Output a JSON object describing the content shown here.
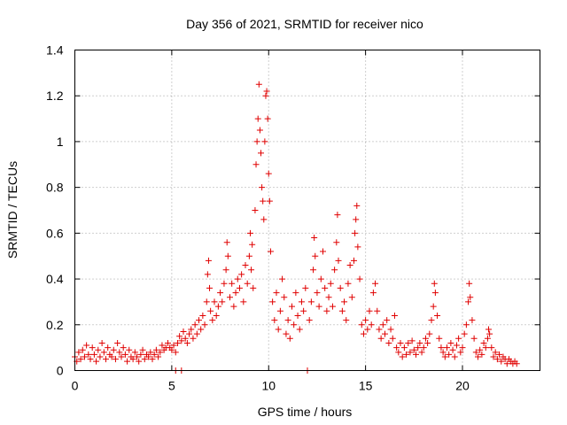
{
  "chart_data": {
    "type": "scatter",
    "title": "Day 356 of 2021, SRMTID for receiver nico",
    "xlabel": "GPS time / hours",
    "ylabel": "SRMTID / TECUs",
    "xlim": [
      0,
      24
    ],
    "ylim": [
      0,
      1.4
    ],
    "xticks": [
      0,
      5,
      10,
      15,
      20
    ],
    "xtick_labels": [
      "0",
      "5",
      "10",
      "15",
      "20"
    ],
    "yticks": [
      0,
      0.2,
      0.4,
      0.6,
      0.8,
      1.0,
      1.2,
      1.4
    ],
    "ytick_labels": [
      "0",
      "0.2",
      "0.4",
      "0.6",
      "0.8",
      "1",
      "1.2",
      "1.4"
    ],
    "grid": true,
    "marker": "+",
    "marker_color": "#e00000",
    "series": [
      {
        "name": "SRMTID",
        "points": [
          [
            0.0,
            0.06
          ],
          [
            0.1,
            0.04
          ],
          [
            0.2,
            0.08
          ],
          [
            0.3,
            0.05
          ],
          [
            0.4,
            0.09
          ],
          [
            0.5,
            0.06
          ],
          [
            0.6,
            0.11
          ],
          [
            0.7,
            0.07
          ],
          [
            0.8,
            0.05
          ],
          [
            0.9,
            0.1
          ],
          [
            1.0,
            0.07
          ],
          [
            1.1,
            0.04
          ],
          [
            1.2,
            0.09
          ],
          [
            1.3,
            0.06
          ],
          [
            1.4,
            0.12
          ],
          [
            1.5,
            0.08
          ],
          [
            1.6,
            0.05
          ],
          [
            1.7,
            0.1
          ],
          [
            1.8,
            0.07
          ],
          [
            1.9,
            0.06
          ],
          [
            2.0,
            0.09
          ],
          [
            2.1,
            0.05
          ],
          [
            2.2,
            0.12
          ],
          [
            2.3,
            0.08
          ],
          [
            2.4,
            0.06
          ],
          [
            2.5,
            0.1
          ],
          [
            2.6,
            0.07
          ],
          [
            2.7,
            0.04
          ],
          [
            2.8,
            0.09
          ],
          [
            2.9,
            0.06
          ],
          [
            3.0,
            0.05
          ],
          [
            3.1,
            0.08
          ],
          [
            3.2,
            0.06
          ],
          [
            3.3,
            0.04
          ],
          [
            3.4,
            0.07
          ],
          [
            3.5,
            0.09
          ],
          [
            3.6,
            0.05
          ],
          [
            3.7,
            0.07
          ],
          [
            3.8,
            0.06
          ],
          [
            3.9,
            0.08
          ],
          [
            4.0,
            0.05
          ],
          [
            4.1,
            0.07
          ],
          [
            4.2,
            0.09
          ],
          [
            4.3,
            0.06
          ],
          [
            4.4,
            0.08
          ],
          [
            4.5,
            0.11
          ],
          [
            4.6,
            0.09
          ],
          [
            4.7,
            0.1
          ],
          [
            4.8,
            0.12
          ],
          [
            4.9,
            0.1
          ],
          [
            5.0,
            0.09
          ],
          [
            5.1,
            0.11
          ],
          [
            5.2,
            0.08
          ],
          [
            5.3,
            0.12
          ],
          [
            5.4,
            0.15
          ],
          [
            5.5,
            0.13
          ],
          [
            5.6,
            0.17
          ],
          [
            5.7,
            0.14
          ],
          [
            5.8,
            0.12
          ],
          [
            5.9,
            0.16
          ],
          [
            5.2,
            0.0
          ],
          [
            5.5,
            0.0
          ],
          [
            6.0,
            0.18
          ],
          [
            6.1,
            0.14
          ],
          [
            6.2,
            0.2
          ],
          [
            6.3,
            0.16
          ],
          [
            6.4,
            0.22
          ],
          [
            6.5,
            0.18
          ],
          [
            6.6,
            0.24
          ],
          [
            6.7,
            0.2
          ],
          [
            6.8,
            0.3
          ],
          [
            6.85,
            0.42
          ],
          [
            6.9,
            0.48
          ],
          [
            6.95,
            0.36
          ],
          [
            7.0,
            0.26
          ],
          [
            7.1,
            0.22
          ],
          [
            7.2,
            0.3
          ],
          [
            7.3,
            0.24
          ],
          [
            7.4,
            0.28
          ],
          [
            7.5,
            0.34
          ],
          [
            7.6,
            0.3
          ],
          [
            7.7,
            0.38
          ],
          [
            7.8,
            0.44
          ],
          [
            7.85,
            0.56
          ],
          [
            7.9,
            0.5
          ],
          [
            8.0,
            0.32
          ],
          [
            8.1,
            0.38
          ],
          [
            8.2,
            0.28
          ],
          [
            8.3,
            0.34
          ],
          [
            8.4,
            0.4
          ],
          [
            8.5,
            0.36
          ],
          [
            8.6,
            0.42
          ],
          [
            8.7,
            0.3
          ],
          [
            8.8,
            0.46
          ],
          [
            8.9,
            0.38
          ],
          [
            9.0,
            0.5
          ],
          [
            9.05,
            0.6
          ],
          [
            9.1,
            0.44
          ],
          [
            9.15,
            0.55
          ],
          [
            9.2,
            0.36
          ],
          [
            9.3,
            0.7
          ],
          [
            9.35,
            0.9
          ],
          [
            9.4,
            1.0
          ],
          [
            9.45,
            1.1
          ],
          [
            9.5,
            1.25
          ],
          [
            9.55,
            1.05
          ],
          [
            9.6,
            0.95
          ],
          [
            9.65,
            0.8
          ],
          [
            9.7,
            0.74
          ],
          [
            9.75,
            0.66
          ],
          [
            9.8,
            1.0
          ],
          [
            9.85,
            1.2
          ],
          [
            9.9,
            1.22
          ],
          [
            9.95,
            1.1
          ],
          [
            10.0,
            0.86
          ],
          [
            10.05,
            0.74
          ],
          [
            10.1,
            0.52
          ],
          [
            10.2,
            0.3
          ],
          [
            10.3,
            0.22
          ],
          [
            10.4,
            0.34
          ],
          [
            10.5,
            0.18
          ],
          [
            10.6,
            0.26
          ],
          [
            10.7,
            0.4
          ],
          [
            10.8,
            0.32
          ],
          [
            10.9,
            0.16
          ],
          [
            11.0,
            0.22
          ],
          [
            11.1,
            0.14
          ],
          [
            11.2,
            0.28
          ],
          [
            11.3,
            0.2
          ],
          [
            11.4,
            0.34
          ],
          [
            11.5,
            0.24
          ],
          [
            11.6,
            0.18
          ],
          [
            11.7,
            0.3
          ],
          [
            11.8,
            0.26
          ],
          [
            11.9,
            0.36
          ],
          [
            12.0,
            0.0
          ],
          [
            12.1,
            0.22
          ],
          [
            12.2,
            0.3
          ],
          [
            12.3,
            0.44
          ],
          [
            12.35,
            0.58
          ],
          [
            12.4,
            0.5
          ],
          [
            12.5,
            0.34
          ],
          [
            12.6,
            0.28
          ],
          [
            12.7,
            0.4
          ],
          [
            12.8,
            0.52
          ],
          [
            12.9,
            0.36
          ],
          [
            13.0,
            0.26
          ],
          [
            13.1,
            0.32
          ],
          [
            13.2,
            0.38
          ],
          [
            13.3,
            0.28
          ],
          [
            13.4,
            0.44
          ],
          [
            13.5,
            0.56
          ],
          [
            13.55,
            0.68
          ],
          [
            13.6,
            0.48
          ],
          [
            13.7,
            0.36
          ],
          [
            13.8,
            0.26
          ],
          [
            13.9,
            0.3
          ],
          [
            14.0,
            0.22
          ],
          [
            14.1,
            0.38
          ],
          [
            14.2,
            0.46
          ],
          [
            14.3,
            0.32
          ],
          [
            14.4,
            0.48
          ],
          [
            14.45,
            0.6
          ],
          [
            14.5,
            0.66
          ],
          [
            14.55,
            0.72
          ],
          [
            14.6,
            0.54
          ],
          [
            14.7,
            0.4
          ],
          [
            14.8,
            0.2
          ],
          [
            14.9,
            0.16
          ],
          [
            15.0,
            0.22
          ],
          [
            15.1,
            0.18
          ],
          [
            15.2,
            0.26
          ],
          [
            15.3,
            0.2
          ],
          [
            15.4,
            0.34
          ],
          [
            15.5,
            0.38
          ],
          [
            15.6,
            0.26
          ],
          [
            15.7,
            0.18
          ],
          [
            15.8,
            0.14
          ],
          [
            15.9,
            0.2
          ],
          [
            16.0,
            0.16
          ],
          [
            16.1,
            0.22
          ],
          [
            16.2,
            0.12
          ],
          [
            16.3,
            0.18
          ],
          [
            16.4,
            0.14
          ],
          [
            16.5,
            0.24
          ],
          [
            16.6,
            0.1
          ],
          [
            16.7,
            0.08
          ],
          [
            16.8,
            0.12
          ],
          [
            16.9,
            0.06
          ],
          [
            17.0,
            0.1
          ],
          [
            17.1,
            0.07
          ],
          [
            17.2,
            0.12
          ],
          [
            17.3,
            0.08
          ],
          [
            17.4,
            0.13
          ],
          [
            17.5,
            0.09
          ],
          [
            17.6,
            0.07
          ],
          [
            17.7,
            0.1
          ],
          [
            17.8,
            0.12
          ],
          [
            17.9,
            0.08
          ],
          [
            18.0,
            0.1
          ],
          [
            18.1,
            0.14
          ],
          [
            18.2,
            0.12
          ],
          [
            18.3,
            0.16
          ],
          [
            18.4,
            0.22
          ],
          [
            18.5,
            0.28
          ],
          [
            18.55,
            0.38
          ],
          [
            18.6,
            0.34
          ],
          [
            18.7,
            0.24
          ],
          [
            18.8,
            0.14
          ],
          [
            18.9,
            0.1
          ],
          [
            19.0,
            0.08
          ],
          [
            19.1,
            0.06
          ],
          [
            19.2,
            0.1
          ],
          [
            19.3,
            0.07
          ],
          [
            19.4,
            0.12
          ],
          [
            19.5,
            0.09
          ],
          [
            19.6,
            0.06
          ],
          [
            19.7,
            0.11
          ],
          [
            19.8,
            0.14
          ],
          [
            19.9,
            0.08
          ],
          [
            20.0,
            0.1
          ],
          [
            20.1,
            0.16
          ],
          [
            20.2,
            0.2
          ],
          [
            20.3,
            0.3
          ],
          [
            20.35,
            0.38
          ],
          [
            20.4,
            0.32
          ],
          [
            20.5,
            0.22
          ],
          [
            20.6,
            0.14
          ],
          [
            20.7,
            0.08
          ],
          [
            20.8,
            0.06
          ],
          [
            20.9,
            0.09
          ],
          [
            21.0,
            0.07
          ],
          [
            21.1,
            0.12
          ],
          [
            21.2,
            0.1
          ],
          [
            21.3,
            0.14
          ],
          [
            21.35,
            0.18
          ],
          [
            21.4,
            0.16
          ],
          [
            21.5,
            0.1
          ],
          [
            21.6,
            0.06
          ],
          [
            21.7,
            0.08
          ],
          [
            21.8,
            0.05
          ],
          [
            21.9,
            0.07
          ],
          [
            22.0,
            0.04
          ],
          [
            22.1,
            0.06
          ],
          [
            22.2,
            0.05
          ],
          [
            22.3,
            0.03
          ],
          [
            22.4,
            0.05
          ],
          [
            22.5,
            0.04
          ],
          [
            22.6,
            0.03
          ],
          [
            22.7,
            0.04
          ],
          [
            22.8,
            0.03
          ]
        ]
      }
    ]
  }
}
